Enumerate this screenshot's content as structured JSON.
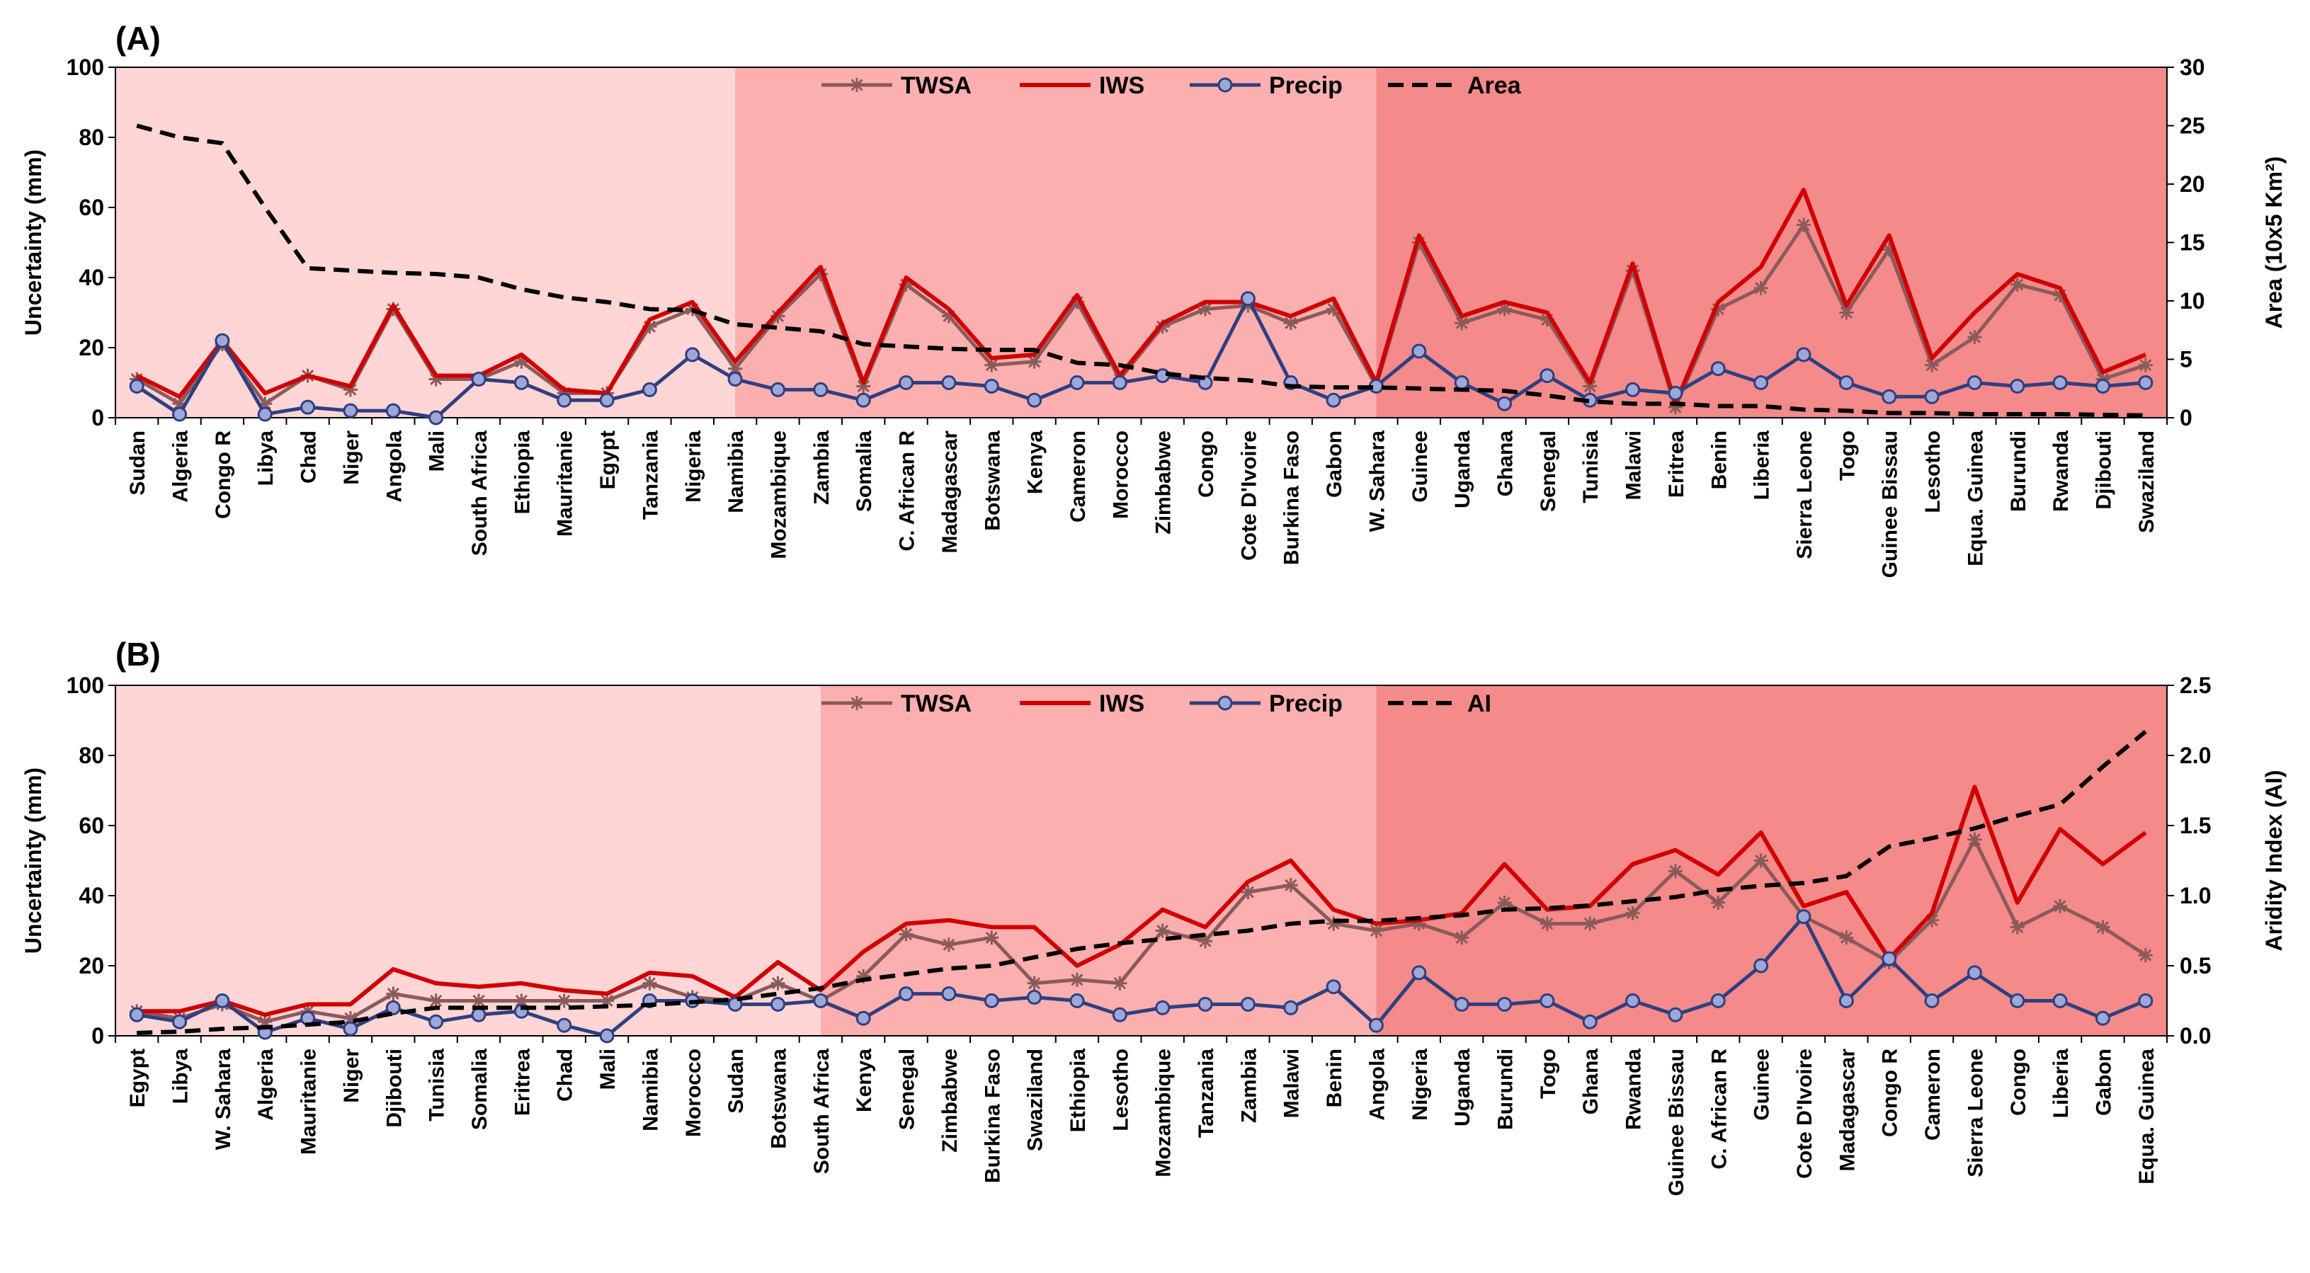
{
  "colors": {
    "twsa": "#8B5A5A",
    "iws": "#D00000",
    "precip": "#2F3F7F",
    "dashed": "#000000",
    "bg": [
      "#FFD5D5",
      "#FBAFAF",
      "#F48A8A"
    ]
  },
  "chart_data": [
    {
      "type": "line",
      "panel_label": "(A)",
      "xlabel": "",
      "ylabel": "Uncertainty (mm)",
      "y2label": "Area (10x5 Km²)",
      "ylim": [
        0,
        100
      ],
      "y2lim": [
        0,
        30
      ],
      "yticks": [
        "0",
        "20",
        "40",
        "60",
        "80",
        "100"
      ],
      "y2ticks": [
        "0",
        "5",
        "10",
        "15",
        "20",
        "25",
        "30"
      ],
      "legend": [
        "TWSA",
        "IWS",
        "Precip",
        "Area"
      ],
      "shading": [
        [
          0,
          14
        ],
        [
          14,
          29
        ],
        [
          29,
          47
        ]
      ],
      "categories": [
        "Sudan",
        "Algeria",
        "Congo R",
        "Libya",
        "Chad",
        "Niger",
        "Angola",
        "Mali",
        "South Africa",
        "Ethiopia",
        "Mauritanie",
        "Egypt",
        "Tanzania",
        "Nigeria",
        "Namibia",
        "Mozambique",
        "Zambia",
        "Somalia",
        "C. African R",
        "Madagascar",
        "Botswana",
        "Kenya",
        "Cameron",
        "Morocco",
        "Zimbabwe",
        "Congo",
        "Cote D'Ivoire",
        "Burkina Faso",
        "Gabon",
        "W. Sahara",
        "Guinee",
        "Uganda",
        "Ghana",
        "Senegal",
        "Tunisia",
        "Malawi",
        "Eritrea",
        "Benin",
        "Liberia",
        "Sierra Leone",
        "Togo",
        "Guinee Bissau",
        "Lesotho",
        "Equa. Guinea",
        "Burundi",
        "Rwanda",
        "Djibouti",
        "Swaziland"
      ],
      "series": [
        {
          "name": "TWSA",
          "axis": "left",
          "values": [
            11,
            4,
            21,
            4,
            12,
            8,
            31,
            11,
            11,
            16,
            7,
            7,
            26,
            31,
            14,
            29,
            41,
            9,
            38,
            29,
            15,
            16,
            33,
            11,
            26,
            31,
            32,
            27,
            31,
            9,
            50,
            27,
            31,
            28,
            9,
            42,
            3,
            31,
            37,
            55,
            30,
            48,
            15,
            23,
            38,
            35,
            11,
            15
          ]
        },
        {
          "name": "IWS",
          "axis": "left",
          "values": [
            12,
            6,
            22,
            7,
            12,
            9,
            32,
            12,
            12,
            18,
            8,
            7,
            28,
            33,
            16,
            30,
            43,
            10,
            40,
            31,
            17,
            18,
            35,
            12,
            27,
            33,
            33,
            29,
            34,
            10,
            52,
            29,
            33,
            30,
            10,
            44,
            4,
            33,
            43,
            65,
            32,
            52,
            17,
            30,
            41,
            37,
            13,
            18
          ]
        },
        {
          "name": "Precip",
          "axis": "left",
          "values": [
            9,
            1,
            22,
            1,
            3,
            2,
            2,
            0,
            11,
            10,
            5,
            5,
            8,
            18,
            11,
            8,
            8,
            5,
            10,
            10,
            9,
            5,
            10,
            10,
            12,
            10,
            34,
            10,
            5,
            9,
            19,
            10,
            4,
            12,
            5,
            8,
            7,
            14,
            10,
            18,
            10,
            6,
            6,
            10,
            9,
            10,
            9,
            10
          ]
        },
        {
          "name": "Area",
          "axis": "right",
          "values": [
            25,
            24,
            23.5,
            18,
            12.8,
            12.6,
            12.4,
            12.3,
            12,
            11,
            10.3,
            9.9,
            9.3,
            9.2,
            8,
            7.7,
            7.4,
            6.3,
            6.1,
            5.9,
            5.8,
            5.8,
            4.7,
            4.5,
            3.8,
            3.4,
            3.2,
            2.7,
            2.6,
            2.6,
            2.5,
            2.4,
            2.3,
            1.9,
            1.4,
            1.2,
            1.2,
            1.0,
            1.0,
            0.7,
            0.6,
            0.4,
            0.4,
            0.3,
            0.3,
            0.3,
            0.25,
            0.2
          ]
        }
      ]
    },
    {
      "type": "line",
      "panel_label": "(B)",
      "xlabel": "",
      "ylabel": "Uncertainty (mm)",
      "y2label": "Aridity Index (AI)",
      "ylim": [
        0,
        100
      ],
      "y2lim": [
        0,
        2.5
      ],
      "yticks": [
        "0",
        "20",
        "40",
        "60",
        "80",
        "100"
      ],
      "y2ticks": [
        "0.0",
        "0.5",
        "1.0",
        "1.5",
        "2.0",
        "2.5"
      ],
      "legend": [
        "TWSA",
        "IWS",
        "Precip",
        "AI"
      ],
      "shading": [
        [
          0,
          16
        ],
        [
          16,
          29
        ],
        [
          29,
          47
        ]
      ],
      "categories": [
        "Egypt",
        "Libya",
        "W. Sahara",
        "Algeria",
        "Mauritanie",
        "Niger",
        "Djibouti",
        "Tunisia",
        "Somalia",
        "Eritrea",
        "Chad",
        "Mali",
        "Namibia",
        "Morocco",
        "Sudan",
        "Botswana",
        "South Africa",
        "Kenya",
        "Senegal",
        "Zimbabwe",
        "Burkina Faso",
        "Swaziland",
        "Ethiopia",
        "Lesotho",
        "Mozambique",
        "Tanzania",
        "Zambia",
        "Malawi",
        "Benin",
        "Angola",
        "Nigeria",
        "Uganda",
        "Burundi",
        "Togo",
        "Ghana",
        "Rwanda",
        "Guinee Bissau",
        "C. African R",
        "Guinee",
        "Cote D'Ivoire",
        "Madagascar",
        "Congo R",
        "Cameron",
        "Sierra Leone",
        "Congo",
        "Liberia",
        "Gabon",
        "Equa. Guinea"
      ],
      "series": [
        {
          "name": "TWSA",
          "axis": "left",
          "values": [
            7,
            5,
            9,
            4,
            7,
            5,
            12,
            10,
            10,
            10,
            10,
            10,
            15,
            11,
            10,
            15,
            10,
            17,
            29,
            26,
            28,
            15,
            16,
            15,
            30,
            27,
            41,
            43,
            32,
            30,
            32,
            28,
            38,
            32,
            32,
            35,
            47,
            38,
            50,
            34,
            28,
            21,
            33,
            56,
            31,
            37,
            31,
            23
          ]
        },
        {
          "name": "IWS",
          "axis": "left",
          "values": [
            7,
            7,
            10,
            6,
            9,
            9,
            19,
            15,
            14,
            15,
            13,
            12,
            18,
            17,
            11,
            21,
            13,
            24,
            32,
            33,
            31,
            31,
            20,
            26,
            36,
            31,
            44,
            50,
            36,
            32,
            33,
            35,
            49,
            36,
            37,
            49,
            53,
            46,
            58,
            37,
            41,
            22,
            35,
            71,
            38,
            59,
            49,
            58
          ]
        },
        {
          "name": "Precip",
          "axis": "left",
          "values": [
            6,
            4,
            10,
            1,
            5,
            2,
            8,
            4,
            6,
            7,
            3,
            0,
            10,
            10,
            9,
            9,
            10,
            5,
            12,
            12,
            10,
            11,
            10,
            6,
            8,
            9,
            9,
            8,
            14,
            3,
            18,
            9,
            9,
            10,
            4,
            10,
            6,
            10,
            20,
            34,
            10,
            22,
            10,
            18,
            10,
            10,
            5,
            10
          ]
        },
        {
          "name": "AI",
          "axis": "right",
          "values": [
            0.02,
            0.03,
            0.05,
            0.06,
            0.08,
            0.1,
            0.16,
            0.2,
            0.2,
            0.2,
            0.2,
            0.21,
            0.22,
            0.24,
            0.26,
            0.3,
            0.34,
            0.4,
            0.44,
            0.48,
            0.5,
            0.56,
            0.62,
            0.66,
            0.69,
            0.72,
            0.75,
            0.8,
            0.82,
            0.82,
            0.84,
            0.86,
            0.9,
            0.91,
            0.93,
            0.96,
            0.99,
            1.04,
            1.07,
            1.09,
            1.14,
            1.35,
            1.41,
            1.48,
            1.57,
            1.65,
            1.92,
            2.17
          ]
        }
      ]
    }
  ]
}
